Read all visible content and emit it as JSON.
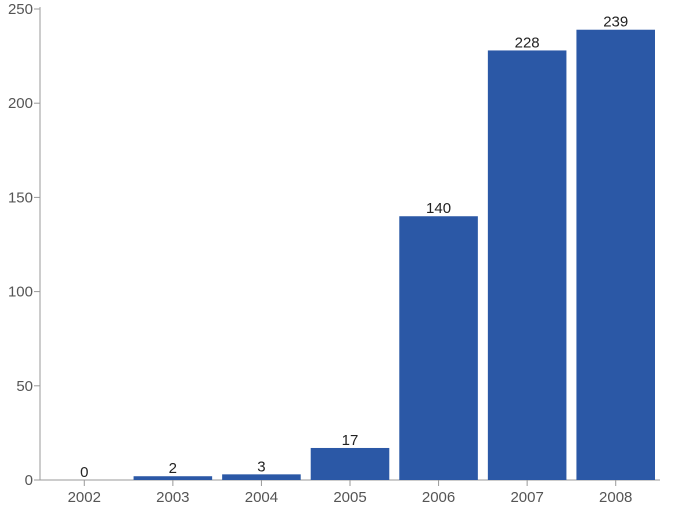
{
  "chart_data": {
    "type": "bar",
    "categories": [
      "2002",
      "2003",
      "2004",
      "2005",
      "2006",
      "2007",
      "2008"
    ],
    "values": [
      0,
      2,
      3,
      17,
      140,
      228,
      239
    ],
    "data_labels": [
      "0",
      "2",
      "3",
      "17",
      "140",
      "228",
      "239"
    ],
    "title": "",
    "xlabel": "",
    "ylabel": "",
    "ylim": [
      0,
      250
    ],
    "yticks": [
      0,
      50,
      100,
      150,
      200,
      250
    ],
    "grid": false,
    "bar_color": "#2b58a6",
    "axis_color": "#999999",
    "tick_label_color": "#555555"
  }
}
